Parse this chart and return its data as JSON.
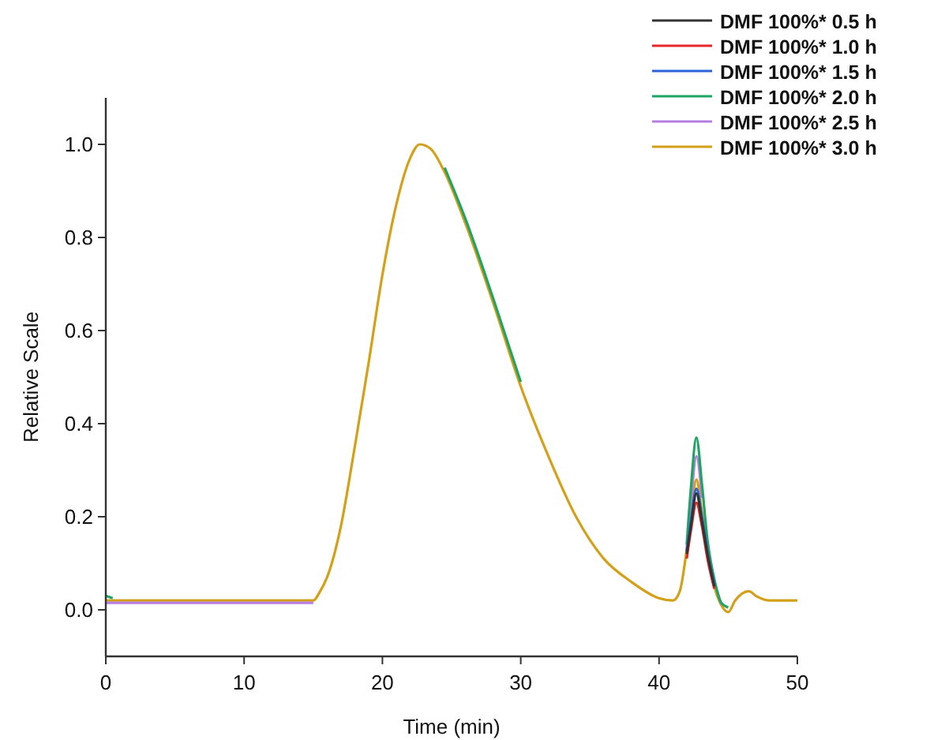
{
  "chart_data": {
    "type": "line",
    "xlabel": "Time (min)",
    "ylabel": "Relative Scale",
    "xlim": [
      0,
      50
    ],
    "ylim": [
      -0.1,
      1.1
    ],
    "xticks": [
      0,
      10,
      20,
      30,
      40,
      50
    ],
    "yticks": [
      {
        "value": 0,
        "label": "0.0"
      },
      {
        "value": 0.2,
        "label": "0.2"
      },
      {
        "value": 0.4,
        "label": "0.4"
      },
      {
        "value": 0.6,
        "label": "0.6"
      },
      {
        "value": 0.8,
        "label": "0.8"
      },
      {
        "value": 1,
        "label": "1.0"
      }
    ],
    "grid": false,
    "legend": "top right",
    "line_style": "solid",
    "x": [
      0,
      0.5,
      1,
      2,
      5,
      10,
      14,
      15,
      15.5,
      16,
      17,
      18,
      19,
      20,
      21,
      22,
      22.7,
      23.5,
      24.5,
      26,
      28,
      30,
      32,
      34,
      36,
      38,
      40,
      41,
      41.5,
      42,
      42.3,
      42.7,
      43.1,
      43.5,
      44,
      44.5,
      45,
      45.5,
      46,
      46.5,
      47,
      48,
      50
    ],
    "series": [
      {
        "name": "DMF 100%* 0.5 h",
        "color": "#333333",
        "values": [
          null,
          null,
          null,
          null,
          null,
          null,
          null,
          null,
          null,
          null,
          null,
          null,
          null,
          null,
          null,
          null,
          null,
          null,
          null,
          null,
          null,
          null,
          null,
          null,
          null,
          null,
          null,
          null,
          null,
          0.12,
          0.18,
          0.25,
          0.19,
          0.12,
          0.05,
          null,
          null,
          null,
          null,
          null,
          null,
          null,
          null
        ]
      },
      {
        "name": "DMF 100%* 1.0 h",
        "color": "#e8262a",
        "values": [
          null,
          null,
          null,
          null,
          null,
          null,
          null,
          null,
          null,
          null,
          null,
          null,
          null,
          null,
          null,
          null,
          null,
          null,
          null,
          null,
          null,
          null,
          null,
          null,
          null,
          null,
          null,
          null,
          null,
          0.11,
          0.17,
          0.23,
          0.18,
          0.11,
          0.045,
          null,
          null,
          null,
          null,
          null,
          null,
          null,
          null
        ]
      },
      {
        "name": "DMF 100%* 1.5 h",
        "color": "#2a62d8",
        "values": [
          null,
          null,
          null,
          null,
          null,
          null,
          null,
          null,
          null,
          null,
          null,
          null,
          null,
          null,
          null,
          null,
          null,
          null,
          null,
          null,
          null,
          null,
          null,
          null,
          null,
          null,
          null,
          null,
          null,
          0.125,
          0.19,
          0.26,
          0.2,
          0.125,
          0.055,
          null,
          null,
          null,
          null,
          null,
          null,
          null,
          null
        ]
      },
      {
        "name": "DMF 100%* 2.0 h",
        "color": "#1fa463",
        "values": [
          0.03,
          0.025,
          null,
          null,
          null,
          null,
          null,
          null,
          null,
          null,
          null,
          null,
          null,
          null,
          null,
          null,
          null,
          null,
          0.95,
          0.84,
          0.67,
          0.49,
          null,
          null,
          null,
          null,
          null,
          null,
          null,
          0.14,
          0.26,
          0.37,
          0.27,
          0.15,
          0.065,
          0.015,
          0.005,
          null,
          null,
          null,
          null,
          null,
          null
        ]
      },
      {
        "name": "DMF 100%* 2.5 h",
        "color": "#b57ee0",
        "values": [
          0.015,
          0.015,
          0.015,
          0.015,
          0.015,
          0.015,
          0.015,
          0.015,
          null,
          null,
          null,
          null,
          null,
          null,
          null,
          null,
          null,
          null,
          null,
          null,
          null,
          null,
          null,
          null,
          null,
          null,
          null,
          null,
          null,
          0.13,
          0.23,
          0.33,
          0.24,
          null,
          0.06,
          0.012,
          null,
          null,
          null,
          null,
          null,
          null,
          null
        ]
      },
      {
        "name": "DMF 100%* 3.0 h",
        "color": "#d4a017",
        "values": [
          0.02,
          0.02,
          0.02,
          0.02,
          0.02,
          0.02,
          0.02,
          0.02,
          0.04,
          0.07,
          0.18,
          0.35,
          0.53,
          0.72,
          0.87,
          0.97,
          1.0,
          0.99,
          0.94,
          0.83,
          0.66,
          0.48,
          0.33,
          0.2,
          0.11,
          0.06,
          0.025,
          0.02,
          0.04,
          0.13,
          0.2,
          0.28,
          0.21,
          0.13,
          0.05,
          0.01,
          -0.005,
          0.02,
          0.035,
          0.04,
          0.03,
          0.02,
          0.02
        ]
      }
    ]
  }
}
